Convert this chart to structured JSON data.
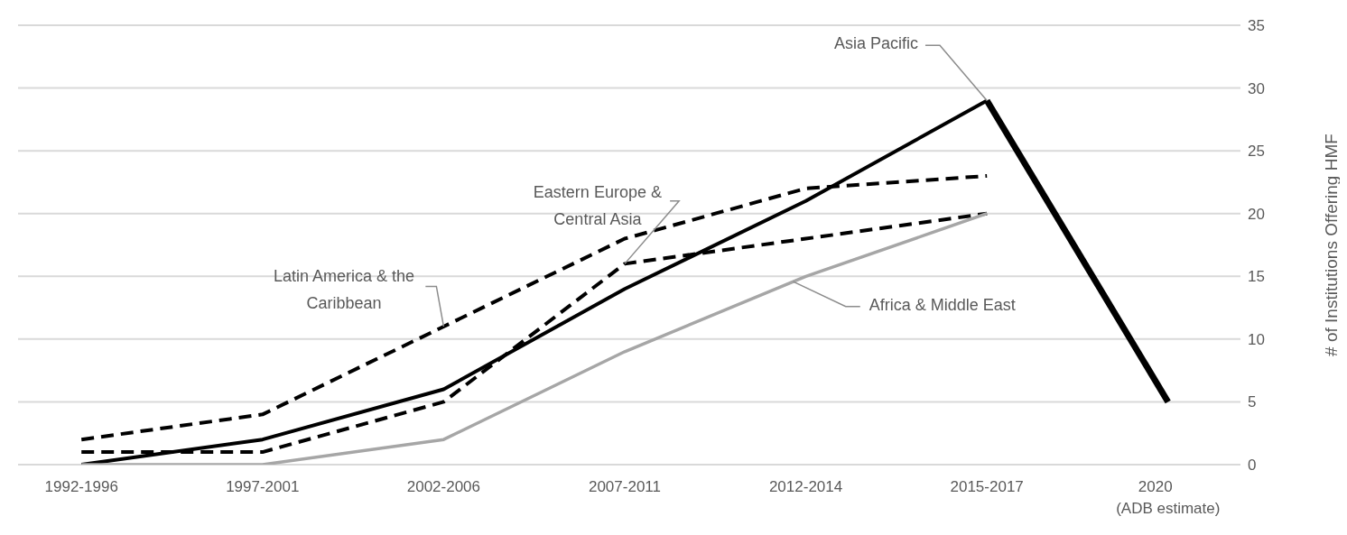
{
  "chart_data": {
    "type": "line",
    "ylabel": "# of Institutions Offering HMF",
    "categories": [
      "1992-1996",
      "1997-2001",
      "2002-2006",
      "2007-2011",
      "2012-2014",
      "2015-2017",
      "2020\n(ADB estimate)"
    ],
    "series": [
      {
        "name": "Asia Pacific",
        "color": "#000000",
        "line_style": "solid",
        "values": [
          0,
          2,
          6,
          14,
          21,
          29,
          null
        ]
      },
      {
        "name": "Latin America & the Caribbean",
        "color": "#000000",
        "line_style": "dashed",
        "values": [
          2,
          4,
          11,
          18,
          22,
          23,
          null
        ]
      },
      {
        "name": "Eastern Europe & Central Asia",
        "color": "#000000",
        "line_style": "dashed",
        "values": [
          1,
          1,
          5,
          16,
          18,
          20,
          null
        ]
      },
      {
        "name": "Africa & Middle East",
        "color": "#a6a6a6",
        "line_style": "solid",
        "values": [
          0,
          0,
          2,
          9,
          15,
          20,
          null
        ]
      },
      {
        "color": "#000000",
        "line_style": "solid",
        "values": [
          null,
          null,
          null,
          null,
          null,
          29,
          5
        ]
      }
    ],
    "ylim": [
      0,
      35
    ],
    "yticks": [
      0,
      5,
      10,
      15,
      20,
      25,
      30,
      35
    ],
    "grid": "y",
    "legend": false,
    "marker": "none"
  }
}
